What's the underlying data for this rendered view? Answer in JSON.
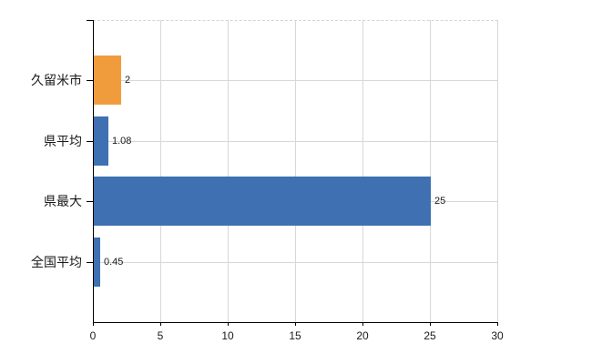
{
  "chart_data": {
    "type": "bar",
    "orientation": "horizontal",
    "title": "",
    "categories": [
      "久留米市",
      "県平均",
      "県最大",
      "全国平均"
    ],
    "values": [
      2,
      1.08,
      25,
      0.45
    ],
    "value_labels": [
      "2",
      "1.08",
      "25",
      "0.45"
    ],
    "bar_colors": [
      "#F09C3C",
      "#3E70B2",
      "#3E70B2",
      "#3E70B2"
    ],
    "xlim": [
      0,
      30
    ],
    "xticks": [
      0,
      5,
      10,
      15,
      20,
      25,
      30
    ],
    "xtick_labels": [
      "0",
      "5",
      "10",
      "15",
      "20",
      "25",
      "30"
    ],
    "grid": true,
    "legend": false
  },
  "colors": {
    "accent_orange": "#F09C3C",
    "accent_blue": "#3E70B2",
    "gridline": "#D8D8D8",
    "axis": "#000000",
    "text": "#1A1A1A",
    "background": "#FFFFFF"
  }
}
